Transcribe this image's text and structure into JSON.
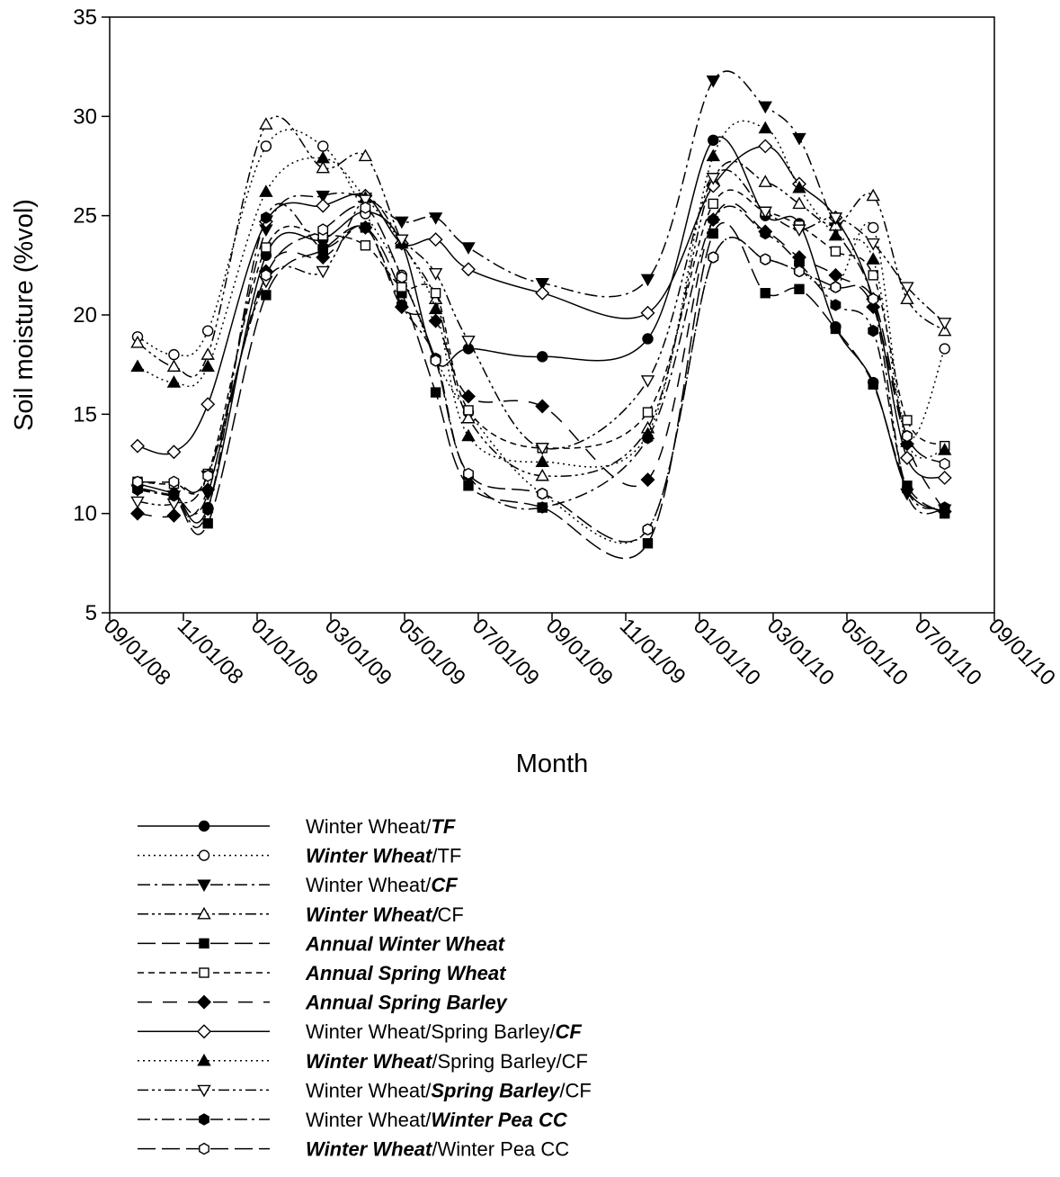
{
  "chart_data": {
    "type": "line",
    "xlabel": "Month",
    "ylabel": "Soil moisture (%vol)",
    "xlim": [
      "2008-09-01",
      "2010-09-01"
    ],
    "ylim": [
      5,
      35
    ],
    "x_ticks": [
      "09/01/08",
      "11/01/08",
      "01/01/09",
      "03/01/09",
      "05/01/09",
      "07/01/09",
      "09/01/09",
      "11/01/09",
      "01/01/10",
      "03/01/10",
      "05/01/10",
      "07/01/10",
      "09/01/10"
    ],
    "y_ticks": [
      5,
      10,
      15,
      20,
      25,
      30,
      35
    ],
    "grid": false,
    "legend_position": "bottom",
    "x": [
      "2008-09-24",
      "2008-10-24",
      "2008-11-21",
      "2009-01-08",
      "2009-02-24",
      "2009-03-31",
      "2009-04-30",
      "2009-05-28",
      "2009-06-24",
      "2009-08-24",
      "2009-11-19",
      "2010-01-12",
      "2010-02-24",
      "2010-03-24",
      "2010-04-23",
      "2010-05-24",
      "2010-06-21",
      "2010-07-22"
    ],
    "series": [
      {
        "name": "Winter Wheat/TF",
        "marker": "circle",
        "fill": "filled",
        "dash": "solid",
        "values": [
          11.5,
          11.0,
          10.3,
          23.0,
          23.8,
          25.2,
          23.6,
          17.7,
          18.3,
          17.9,
          18.8,
          28.8,
          25.0,
          24.6,
          19.4,
          16.6,
          11.2,
          10.1
        ]
      },
      {
        "name": "Winter Wheat/TF",
        "marker": "circle",
        "fill": "open",
        "dash": "dotted",
        "values": [
          18.9,
          18.0,
          19.2,
          28.5,
          28.5,
          25.1,
          22.0,
          17.8,
          15.1,
          11.0,
          9.2,
          22.9,
          22.8,
          22.2,
          21.4,
          24.4,
          13.9,
          18.3
        ]
      },
      {
        "name": "Winter Wheat/CF",
        "marker": "triangle-down",
        "fill": "filled",
        "dash": "dash-dot",
        "values": [
          11.2,
          10.9,
          11.0,
          24.3,
          26.0,
          25.9,
          24.7,
          24.9,
          23.4,
          21.6,
          21.8,
          31.8,
          30.5,
          28.9,
          24.4,
          20.7,
          11.0,
          10.2
        ]
      },
      {
        "name": "Winter Wheat/CF",
        "marker": "triangle-up",
        "fill": "open",
        "dash": "dash-dot-dot",
        "values": [
          18.6,
          17.4,
          18.0,
          29.6,
          27.4,
          28.0,
          23.7,
          20.8,
          14.8,
          11.9,
          14.3,
          26.8,
          26.7,
          25.6,
          24.5,
          26.0,
          20.8,
          19.2
        ]
      },
      {
        "name": "Annual Winter Wheat",
        "marker": "square",
        "fill": "filled",
        "dash": "long-dash",
        "values": [
          11.3,
          10.8,
          9.5,
          21.0,
          23.3,
          24.4,
          21.1,
          16.1,
          11.4,
          10.3,
          8.5,
          24.1,
          21.1,
          21.3,
          19.3,
          16.5,
          11.4,
          10.0
        ]
      },
      {
        "name": "Annual Spring Wheat",
        "marker": "square",
        "fill": "open",
        "dash": "short-dash",
        "values": [
          11.6,
          11.5,
          12.0,
          23.4,
          24.0,
          23.5,
          21.4,
          21.1,
          15.2,
          13.3,
          15.1,
          25.6,
          25.2,
          24.5,
          23.2,
          22.0,
          14.7,
          13.4
        ]
      },
      {
        "name": "Annual Spring Barley",
        "marker": "diamond",
        "fill": "filled",
        "dash": "long-dash-gap",
        "values": [
          10.0,
          9.9,
          11.2,
          22.2,
          22.9,
          24.4,
          20.4,
          19.7,
          15.9,
          15.4,
          11.7,
          24.8,
          24.2,
          22.9,
          22.0,
          20.4,
          13.5,
          10.1
        ]
      },
      {
        "name": "Winter Wheat/Spring Barley/CF",
        "marker": "diamond",
        "fill": "open",
        "dash": "solid",
        "values": [
          13.4,
          13.1,
          15.5,
          24.7,
          25.5,
          26.0,
          23.6,
          23.8,
          22.3,
          21.1,
          20.1,
          26.5,
          28.5,
          26.6,
          24.9,
          20.8,
          12.8,
          11.8
        ]
      },
      {
        "name": "Winter Wheat/Spring Barley/CF",
        "marker": "triangle-up",
        "fill": "filled",
        "dash": "dotted",
        "values": [
          17.4,
          16.6,
          17.4,
          26.2,
          27.9,
          25.9,
          23.6,
          20.3,
          13.9,
          12.6,
          14.0,
          28.0,
          29.4,
          26.4,
          24.0,
          22.8,
          13.6,
          13.2
        ]
      },
      {
        "name": "Winter Wheat/Spring Barley/CF",
        "marker": "triangle-down",
        "fill": "open",
        "dash": "dash-dot-dot",
        "values": [
          10.6,
          10.5,
          11.9,
          21.7,
          22.2,
          25.8,
          23.8,
          22.1,
          18.7,
          13.3,
          16.7,
          26.9,
          25.2,
          24.3,
          24.9,
          23.6,
          21.4,
          19.6
        ]
      },
      {
        "name": "Winter Wheat/Winter Pea CC",
        "marker": "hexagon",
        "fill": "filled",
        "dash": "dash-dot",
        "values": [
          11.2,
          10.9,
          10.2,
          24.9,
          23.4,
          24.4,
          20.5,
          17.8,
          11.9,
          10.3,
          13.8,
          24.8,
          24.1,
          22.6,
          20.5,
          19.2,
          11.2,
          10.3
        ]
      },
      {
        "name": "Winter Wheat/Winter Pea CC",
        "marker": "hexagon",
        "fill": "open",
        "dash": "long-dash",
        "values": [
          11.6,
          11.6,
          11.9,
          22.0,
          24.3,
          25.4,
          21.9,
          17.7,
          12.0,
          11.0,
          9.2,
          22.9,
          22.8,
          22.2,
          21.4,
          20.8,
          13.9,
          12.5
        ]
      }
    ]
  },
  "legend": {
    "entries": [
      {
        "parts": [
          {
            "text": "Winter Wheat/",
            "bold": false
          },
          {
            "text": "TF",
            "bold": true
          }
        ]
      },
      {
        "parts": [
          {
            "text": "Winter Wheat",
            "bold": true
          },
          {
            "text": "/TF",
            "bold": false
          }
        ]
      },
      {
        "parts": [
          {
            "text": "Winter Wheat/",
            "bold": false
          },
          {
            "text": "CF",
            "bold": true
          }
        ]
      },
      {
        "parts": [
          {
            "text": "Winter Wheat/",
            "bold": true
          },
          {
            "text": "CF",
            "bold": false
          }
        ]
      },
      {
        "parts": [
          {
            "text": "Annual Winter Wheat",
            "bold": true
          }
        ]
      },
      {
        "parts": [
          {
            "text": "Annual Spring Wheat",
            "bold": true
          }
        ]
      },
      {
        "parts": [
          {
            "text": "Annual Spring Barley",
            "bold": true
          }
        ]
      },
      {
        "parts": [
          {
            "text": "Winter Wheat/Spring Barley/",
            "bold": false
          },
          {
            "text": "CF",
            "bold": true
          }
        ]
      },
      {
        "parts": [
          {
            "text": "Winter Wheat",
            "bold": true
          },
          {
            "text": "/Spring Barley/CF",
            "bold": false
          }
        ]
      },
      {
        "parts": [
          {
            "text": "Winter Wheat/",
            "bold": false
          },
          {
            "text": "Spring Barley",
            "bold": true
          },
          {
            "text": "/CF",
            "bold": false
          }
        ]
      },
      {
        "parts": [
          {
            "text": "Winter Wheat/",
            "bold": false
          },
          {
            "text": "Winter Pea CC",
            "bold": true
          }
        ]
      },
      {
        "parts": [
          {
            "text": "Winter Wheat",
            "bold": true
          },
          {
            "text": "/Winter Pea CC",
            "bold": false
          }
        ]
      }
    ]
  }
}
